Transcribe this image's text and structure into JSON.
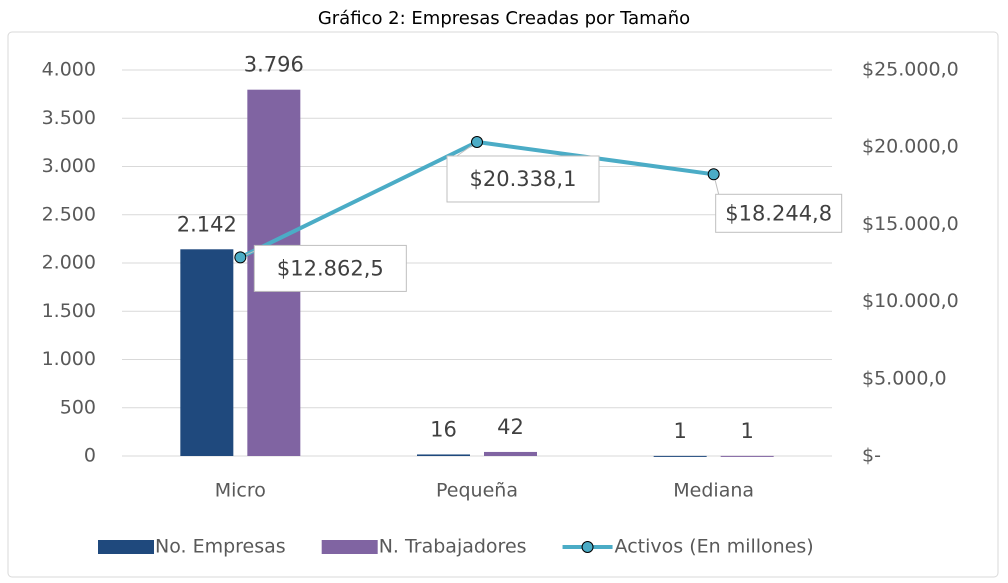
{
  "chart_data": {
    "type": "bar",
    "title": "Gráfico 2: Empresas Creadas por Tamaño",
    "categories": [
      "Micro",
      "Pequeña",
      "Mediana"
    ],
    "series": [
      {
        "name": "No. Empresas",
        "color": "#1f497d",
        "values": [
          2142,
          16,
          1
        ],
        "value_labels": [
          "2.142",
          "16",
          "1"
        ]
      },
      {
        "name": "N. Trabajadores",
        "color": "#8064a2",
        "values": [
          3796,
          42,
          1
        ],
        "value_labels": [
          "3.796",
          "42",
          "1"
        ]
      },
      {
        "name": "Activos (En millones)",
        "color": "#4bacc6",
        "type": "line",
        "axis": "y2",
        "values": [
          12862.5,
          20338.1,
          18244.8
        ],
        "value_labels": [
          "$12.862,5",
          "$20.338,1",
          "$18.244,8"
        ]
      }
    ],
    "ylim": [
      0,
      4000
    ],
    "yticks": [
      0,
      500,
      {
        "value": 1000,
        "label": "1.000"
      },
      {
        "value": 1500,
        "label": "1.500"
      },
      {
        "value": 2000,
        "label": "2.000"
      },
      {
        "value": 2500,
        "label": "2.500"
      },
      {
        "value": 3000,
        "label": "3.000"
      },
      {
        "value": 3500,
        "label": "3.500"
      },
      {
        "value": 4000,
        "label": "4.000"
      }
    ],
    "y2lim": [
      0,
      25000
    ],
    "y2ticks": [
      {
        "value": 0,
        "label": "$-"
      },
      {
        "value": 5000,
        "label": "$5.000,0"
      },
      {
        "value": 10000,
        "label": "$10.000,0"
      },
      {
        "value": 15000,
        "label": "$15.000,0"
      },
      {
        "value": 20000,
        "label": "$20.000,0"
      },
      {
        "value": 25000,
        "label": "$25.000,0"
      }
    ],
    "grid": true,
    "legend": "bottom"
  }
}
